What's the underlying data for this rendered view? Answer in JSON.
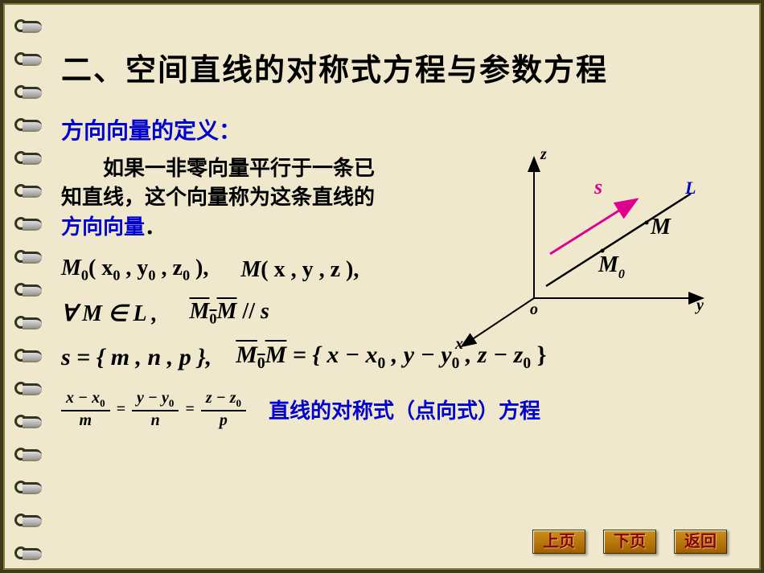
{
  "title": "二、空间直线的对称式方程与参数方程",
  "subtitle": "方向向量的定义：",
  "paragraph_pre": "如果一非零向量平行于一条已知直线，这个向量称为这条直线的",
  "paragraph_hl": "方向向量",
  "paragraph_post": "．",
  "m0": "M",
  "m0_sub": "0",
  "m0_args": "( x",
  "m0_x0s": "0",
  "m0_c1": " , y",
  "m0_y0s": "0",
  "m0_c2": " , z",
  "m0_z0s": "0",
  "m0_end": " ),",
  "m": "M",
  "m_args": "( x , y , z ),",
  "forall": "∀ M ∈ L ,",
  "m0m": "M",
  "m0m_sub": "0",
  "m0m2": "M",
  "parallel": " // ",
  "s_vec": "s",
  "s_eq": "s = { m , n , p },",
  "m0m_eq_pre": "M",
  "m0m_eq_sub": "0",
  "m0m_eq_post": "M",
  "m0m_rhs": " = { x − x",
  "x0s": "0",
  "c_y": " , y − y",
  "y0s": "0",
  "c_z": " , z − z",
  "z0s": "0",
  "rhs_end": " }",
  "frac1_num_a": "x − x",
  "frac1_num_s": "0",
  "frac1_den": "m",
  "eq": "=",
  "frac2_num_a": "y − y",
  "frac2_num_s": "0",
  "frac2_den": "n",
  "frac3_num_a": "z − z",
  "frac3_num_s": "0",
  "frac3_den": "p",
  "eq_label": "直线的对称式（点向式）方程",
  "diagram": {
    "origin_label": "o",
    "x_label": "x",
    "y_label": "y",
    "z_label": "z",
    "s_label": "s",
    "L_label": "L",
    "M_label": "M",
    "M0_label": "M",
    "M0_sub": "0",
    "axis_color": "#000000",
    "vector_color": "#e00090",
    "line_color": "#000000",
    "label_color_s": "#e00090",
    "label_color_L": "#0000d0"
  },
  "nav": {
    "prev": "上页",
    "next": "下页",
    "back": "返回"
  },
  "colors": {
    "bg": "#f0e8cc",
    "title": "#000000",
    "accent": "#0000d0",
    "btn_bg": "#c07a10",
    "btn_text": "#8b0000"
  }
}
